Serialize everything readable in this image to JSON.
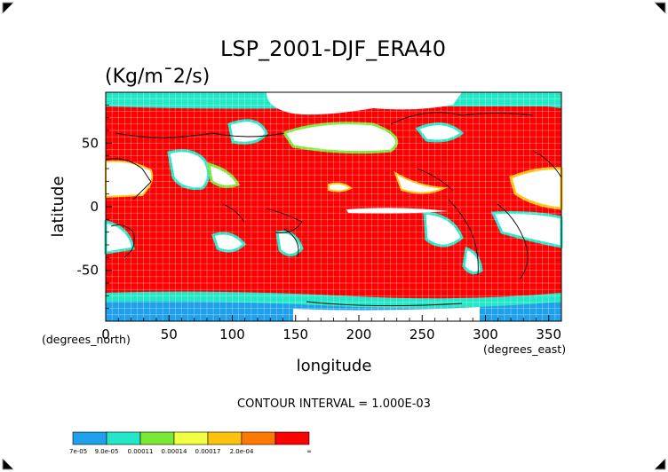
{
  "page": {
    "title": "LSP_2001-DJF_ERA40",
    "units": "(Kg/m¯2/s)",
    "contour_note": "CONTOUR INTERVAL = 1.000E-03"
  },
  "colors": {
    "background": "#ffffff",
    "axis": "#000000",
    "grid": "#ffffff",
    "coast": "#000000"
  },
  "chart_data": {
    "type": "heatmap",
    "title": "LSP_2001-DJF_ERA40",
    "subtitle": "(Kg/m¯2/s)",
    "xlabel": "longitude",
    "ylabel": "latitude",
    "x_unit_label": "(degrees_east)",
    "y_unit_label": "(degrees_north)",
    "xlim": [
      0,
      360
    ],
    "ylim": [
      -90,
      90
    ],
    "x_ticks": [
      0,
      50,
      100,
      150,
      200,
      250,
      300,
      350
    ],
    "y_ticks": [
      -50,
      0,
      50
    ],
    "grid": true,
    "colorbar": {
      "placement": "bottom-left",
      "levels": [
        "7e-05",
        "9.0e-05",
        "0.00011",
        "0.00014",
        "0.00017",
        "2.0e-04",
        "∞"
      ],
      "colors": [
        "#1ea0ea",
        "#22e8c8",
        "#7ae834",
        "#f0ff40",
        "#ffc20a",
        "#ff7800",
        "#ff0000"
      ]
    }
  }
}
